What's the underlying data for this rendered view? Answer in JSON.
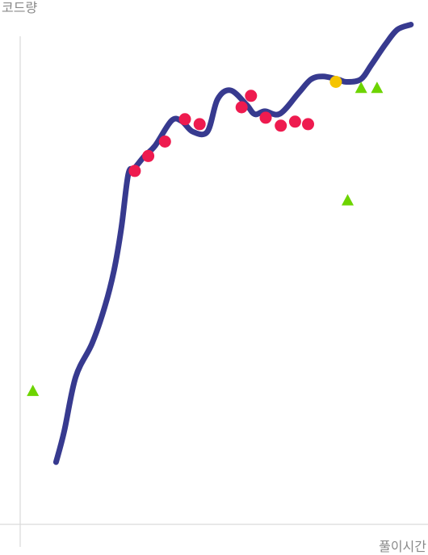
{
  "chart_data": {
    "type": "line",
    "title": "",
    "xlabel": "풀이시간",
    "ylabel": "코드량",
    "grid": false,
    "legend": "none",
    "tick_labels": false,
    "xlim": [
      0,
      100
    ],
    "ylim": [
      0,
      100
    ],
    "colors": {
      "curve": "#373A8F",
      "pink_point": "#EE1B4F",
      "yellow_point": "#F5C400",
      "green_triangle": "#6DD400",
      "axis": "#D9D9D9",
      "axis_text": "#888888"
    },
    "curve": {
      "x": [
        8.8,
        10.8,
        13.6,
        17.6,
        20.7,
        23.0,
        24.8,
        26.5,
        28.0,
        30.4,
        33.1,
        37.1,
        39.6,
        42.3,
        45.9,
        48.4,
        51.6,
        55.5,
        57.5,
        60.0,
        63.7,
        68.3,
        71.3,
        74.2,
        77.9,
        80.0,
        83.5,
        86.1,
        89.6,
        92.5,
        95.8
      ],
      "y": [
        12.5,
        18.7,
        29.6,
        36.3,
        43.6,
        51.0,
        59.5,
        70.3,
        71.5,
        73.9,
        76.1,
        81.1,
        81.0,
        78.9,
        78.9,
        85.4,
        87.2,
        84.3,
        82.4,
        83.0,
        82.5,
        86.7,
        89.4,
        90.0,
        89.4,
        88.9,
        89.4,
        92.3,
        96.5,
        99.4,
        100.4
      ]
    },
    "series": [
      {
        "marker": "circle",
        "color": "pink_point",
        "x": [
          28.1,
          31.4,
          35.5,
          40.4,
          44.0,
          54.3,
          56.6,
          60.2,
          63.9,
          67.4,
          70.6
        ],
        "y": [
          71.0,
          74.0,
          76.9,
          81.4,
          80.4,
          83.8,
          86.1,
          81.7,
          80.1,
          80.9,
          80.4
        ]
      },
      {
        "marker": "circle",
        "color": "yellow_point",
        "x": [
          77.4
        ],
        "y": [
          88.9
        ]
      },
      {
        "marker": "triangle",
        "color": "green_triangle",
        "x": [
          3.1,
          80.3,
          83.6,
          87.5
        ],
        "y": [
          26.8,
          65.1,
          87.7,
          87.7
        ]
      }
    ]
  }
}
